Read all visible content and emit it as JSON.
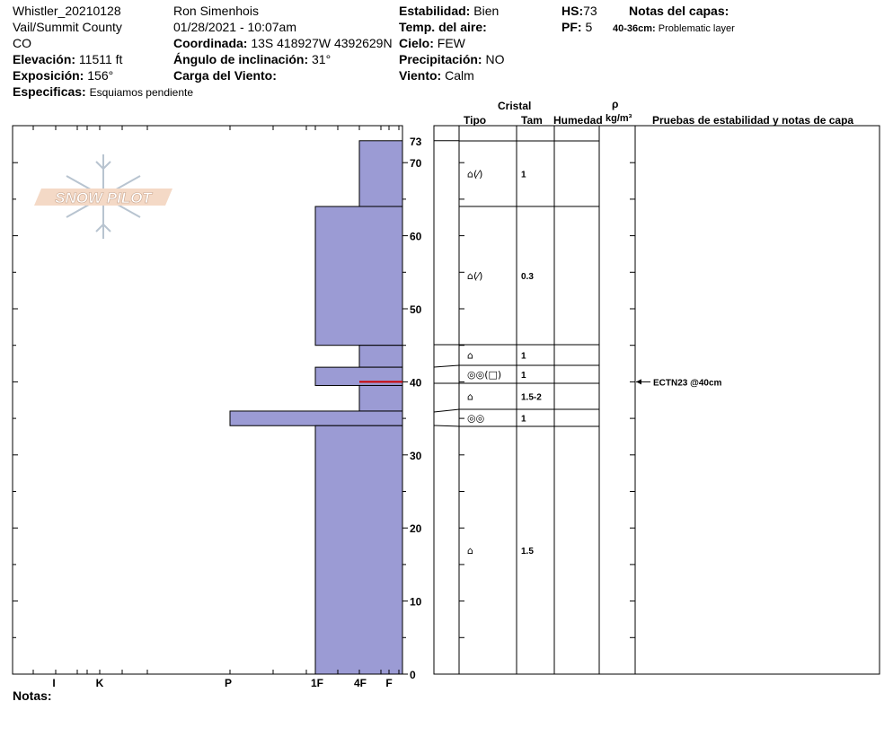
{
  "header": {
    "col1": [
      "Whistler_20210128",
      "Vail/Summit County",
      "CO"
    ],
    "elevation_label": "Elevación:",
    "elevation_value": "11511 ft",
    "aspect_label": "Exposición:",
    "aspect_value": "156°",
    "specifics_label": "Especificas:",
    "specifics_value": "Esquiamos pendiente",
    "observer": "Ron Simenhois",
    "datetime": "01/28/2021 - 10:07am",
    "coord_label": "Coordinada:",
    "coord_value": "13S 418927W 4392629N",
    "slope_label": "Ángulo de inclinación:",
    "slope_value": "31°",
    "wind_load_label": "Carga del Viento:",
    "stability_label": "Estabilidad:",
    "stability_value": "Bien",
    "air_temp_label": "Temp. del aire:",
    "sky_label": "Cielo:",
    "sky_value": "FEW",
    "precip_label": "Precipitación:",
    "precip_value": "NO",
    "wind_label": "Viento:",
    "wind_value": "Calm",
    "hs_label": "HS:",
    "hs_value": "73",
    "pf_label": "PF:",
    "pf_value": "5",
    "layer_notes_label": "Notas del capas:",
    "layer_note_range": "40-36cm:",
    "layer_note_text": "Problematic layer"
  },
  "logo_text": "SNOW PILOT",
  "notes_label": "Notas:",
  "table_headers": {
    "crystal": "Cristal",
    "type": "Tipo",
    "size": "Tam",
    "moisture": "Humedad",
    "rho": "ρ",
    "density_unit": "kg/m³",
    "stability_notes": "Pruebas de estabilidad y notas de capa"
  },
  "chart_data": {
    "type": "bar",
    "title": "",
    "ylabel": "",
    "ylim": [
      0,
      75
    ],
    "y_ticks": [
      0,
      10,
      20,
      30,
      40,
      50,
      60,
      70
    ],
    "hs_tick": 73,
    "hardness_scale": [
      "F",
      "4F",
      "1F",
      "P",
      "K",
      "I"
    ],
    "hardness_labels": [
      "I",
      "K",
      "P",
      "1F",
      "4F",
      "F"
    ],
    "bar_color": "#9b9bd4",
    "edge_color": "#000000",
    "marker_color": "#cc0000",
    "layers": [
      {
        "top": 73,
        "bottom": 64,
        "hardness": "4F",
        "grain": "⌂(⁄)",
        "size": "1"
      },
      {
        "top": 64,
        "bottom": 45,
        "hardness": "1F",
        "grain": "⌂(⁄)",
        "size": "0.3"
      },
      {
        "top": 45,
        "bottom": 42,
        "hardness": "4F",
        "grain": "⌂",
        "size": "1"
      },
      {
        "top": 42,
        "bottom": 39.5,
        "hardness": "1F",
        "grain": "◎◎(□)",
        "size": "1"
      },
      {
        "top": 39.5,
        "bottom": 36,
        "hardness": "4F",
        "grain": "⌂",
        "size": "1.5-2"
      },
      {
        "top": 36,
        "bottom": 34,
        "hardness": "P",
        "grain": "◎◎",
        "size": "1"
      },
      {
        "top": 34,
        "bottom": 0,
        "hardness": "1F",
        "grain": "⌂",
        "size": "1.5"
      }
    ],
    "marker_depth": 40,
    "tests": [
      {
        "depth": 40,
        "label": "ECTN23 @40cm"
      }
    ]
  }
}
